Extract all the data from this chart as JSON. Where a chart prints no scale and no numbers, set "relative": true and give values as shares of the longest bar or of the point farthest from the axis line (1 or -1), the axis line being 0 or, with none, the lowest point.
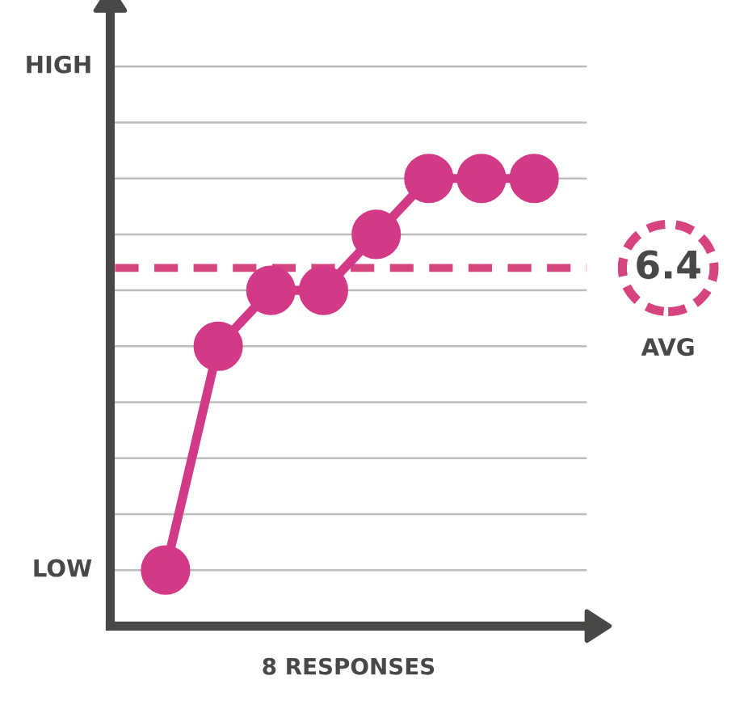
{
  "chart_data": {
    "type": "line",
    "relative": true,
    "categories": [
      null,
      null,
      null,
      null,
      null,
      null,
      null,
      null
    ],
    "series": [
      {
        "color": "#d23a88",
        "values": [
          0.125,
          0.625,
          0.75,
          0.75,
          0.875,
          1,
          1,
          1
        ]
      }
    ],
    "grid": "y",
    "marker": "circle",
    "line_style": "solid",
    "xlabel": "8 RESPONSES",
    "ref_lines": [
      {
        "axis": "y",
        "value": 0.8,
        "color": "#d6447f",
        "line_style": "dashed"
      }
    ],
    "annotations": [
      "HIGH",
      "LOW",
      "6.4",
      "AVG"
    ]
  }
}
